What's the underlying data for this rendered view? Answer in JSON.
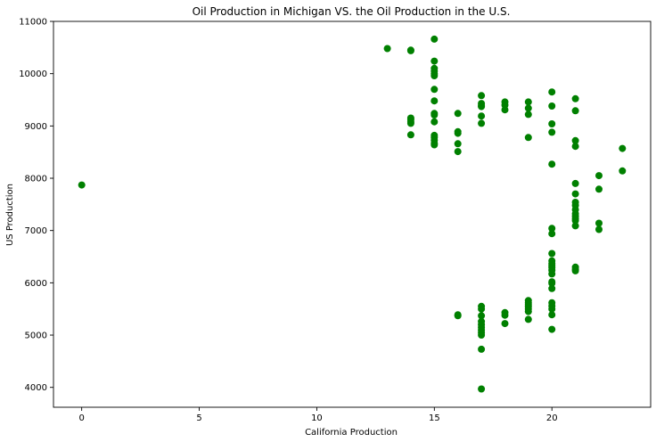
{
  "chart_data": {
    "type": "scatter",
    "title": "Oil Production in Michigan VS. the Oil Production in the U.S.",
    "xlabel": "California Production",
    "ylabel": "US Production",
    "xlim": [
      -1.2,
      24.2
    ],
    "ylim": [
      3620,
      11000
    ],
    "xticks": [
      0,
      5,
      10,
      15,
      20
    ],
    "yticks": [
      4000,
      5000,
      6000,
      7000,
      8000,
      9000,
      10000,
      11000
    ],
    "grid": false,
    "marker_color": "#008000",
    "points": [
      [
        0,
        7870
      ],
      [
        13,
        10480
      ],
      [
        14,
        10450
      ],
      [
        14,
        10440
      ],
      [
        14,
        9150
      ],
      [
        14,
        9120
      ],
      [
        14,
        9080
      ],
      [
        14,
        9050
      ],
      [
        14,
        8830
      ],
      [
        15,
        10660
      ],
      [
        15,
        10240
      ],
      [
        15,
        10100
      ],
      [
        15,
        10050
      ],
      [
        15,
        10000
      ],
      [
        15,
        9960
      ],
      [
        15,
        9700
      ],
      [
        15,
        9480
      ],
      [
        15,
        9240
      ],
      [
        15,
        9210
      ],
      [
        15,
        9080
      ],
      [
        15,
        8820
      ],
      [
        15,
        8780
      ],
      [
        15,
        8730
      ],
      [
        15,
        8670
      ],
      [
        15,
        8640
      ],
      [
        16,
        9240
      ],
      [
        16,
        8890
      ],
      [
        16,
        8860
      ],
      [
        16,
        8660
      ],
      [
        16,
        8510
      ],
      [
        16,
        5390
      ],
      [
        16,
        5370
      ],
      [
        17,
        9580
      ],
      [
        17,
        9430
      ],
      [
        17,
        9390
      ],
      [
        17,
        9370
      ],
      [
        17,
        9190
      ],
      [
        17,
        9050
      ],
      [
        17,
        5550
      ],
      [
        17,
        5500
      ],
      [
        17,
        5370
      ],
      [
        17,
        5260
      ],
      [
        17,
        5200
      ],
      [
        17,
        5150
      ],
      [
        17,
        5100
      ],
      [
        17,
        5050
      ],
      [
        17,
        5000
      ],
      [
        17,
        4730
      ],
      [
        17,
        3970
      ],
      [
        18,
        9460
      ],
      [
        18,
        9400
      ],
      [
        18,
        9310
      ],
      [
        18,
        5430
      ],
      [
        18,
        5380
      ],
      [
        18,
        5220
      ],
      [
        19,
        9460
      ],
      [
        19,
        9340
      ],
      [
        19,
        9220
      ],
      [
        19,
        8780
      ],
      [
        19,
        5660
      ],
      [
        19,
        5620
      ],
      [
        19,
        5580
      ],
      [
        19,
        5540
      ],
      [
        19,
        5500
      ],
      [
        19,
        5450
      ],
      [
        19,
        5300
      ],
      [
        20,
        9650
      ],
      [
        20,
        9380
      ],
      [
        20,
        9040
      ],
      [
        20,
        8880
      ],
      [
        20,
        8270
      ],
      [
        20,
        7040
      ],
      [
        20,
        6940
      ],
      [
        20,
        6560
      ],
      [
        20,
        6420
      ],
      [
        20,
        6370
      ],
      [
        20,
        6330
      ],
      [
        20,
        6290
      ],
      [
        20,
        6240
      ],
      [
        20,
        6170
      ],
      [
        20,
        6020
      ],
      [
        20,
        5990
      ],
      [
        20,
        5890
      ],
      [
        20,
        5620
      ],
      [
        20,
        5560
      ],
      [
        20,
        5500
      ],
      [
        20,
        5390
      ],
      [
        20,
        5110
      ],
      [
        21,
        9520
      ],
      [
        21,
        9290
      ],
      [
        21,
        8720
      ],
      [
        21,
        8610
      ],
      [
        21,
        7900
      ],
      [
        21,
        7700
      ],
      [
        21,
        7540
      ],
      [
        21,
        7480
      ],
      [
        21,
        7400
      ],
      [
        21,
        7320
      ],
      [
        21,
        7270
      ],
      [
        21,
        7230
      ],
      [
        21,
        7190
      ],
      [
        21,
        7090
      ],
      [
        21,
        6300
      ],
      [
        21,
        6260
      ],
      [
        21,
        6230
      ],
      [
        22,
        8050
      ],
      [
        22,
        7790
      ],
      [
        22,
        7140
      ],
      [
        22,
        7020
      ],
      [
        23,
        8570
      ],
      [
        23,
        8140
      ]
    ]
  }
}
